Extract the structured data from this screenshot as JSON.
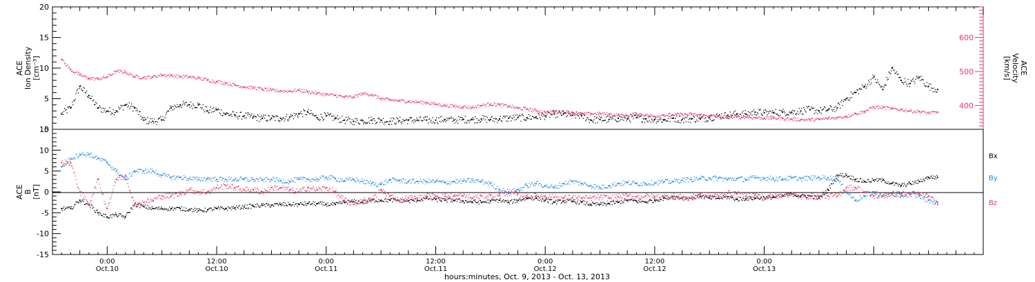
{
  "chart_data": [
    {
      "type": "scatter",
      "panel": "top",
      "ylabel_left": [
        "ACE",
        "Ion Density",
        "[cm⁻³]"
      ],
      "ylabel_right": [
        "ACE",
        "Velocity",
        "[km/s]"
      ],
      "left_ticks": [
        "20",
        "15",
        "10",
        "5",
        "0"
      ],
      "right_ticks": [
        "600",
        "500",
        "400"
      ],
      "ylim_left": [
        0,
        20
      ],
      "ylim_right": [
        330,
        690
      ],
      "grid": false,
      "series": [
        {
          "axis": "left",
          "color": "#000000",
          "x": [
            -5,
            -4,
            -3,
            -2,
            -1,
            0,
            1,
            2,
            3,
            4,
            5,
            6,
            7,
            8,
            9,
            10,
            11,
            12,
            13,
            14,
            15,
            16,
            17,
            18,
            19,
            20,
            21,
            22,
            23,
            24,
            25,
            26,
            27,
            28,
            29,
            30,
            31,
            32,
            33,
            34,
            35,
            36,
            37,
            38,
            39,
            40,
            41,
            42,
            43,
            44,
            45,
            46,
            47,
            48,
            49,
            50,
            51,
            52,
            53,
            54,
            55,
            56,
            57,
            58,
            59,
            60,
            61,
            62,
            63,
            64,
            65,
            66,
            67,
            68,
            69,
            70,
            71,
            72,
            73,
            74,
            75,
            76,
            77,
            78,
            79,
            80,
            81,
            82,
            83,
            84,
            85,
            86,
            87,
            88,
            89,
            90,
            91
          ],
          "values": [
            2.5,
            3.5,
            7,
            5.5,
            3.5,
            3,
            3,
            4,
            3.5,
            1.5,
            1.3,
            1.5,
            3.5,
            4,
            4,
            4,
            3,
            3.2,
            2.5,
            2.3,
            2.2,
            2,
            1.8,
            1.8,
            1.8,
            2,
            2.5,
            2.8,
            1.9,
            2.2,
            1.8,
            1.5,
            1.3,
            1.4,
            1.5,
            1.5,
            1.3,
            1.4,
            1.5,
            1.5,
            1.5,
            1.5,
            1.6,
            1.5,
            1.6,
            1.6,
            1.7,
            1.6,
            1.7,
            1.8,
            1.9,
            1.9,
            2,
            2.2,
            2.5,
            2.5,
            2.3,
            2.2,
            1.5,
            1.6,
            1.6,
            1.8,
            1.7,
            1.9,
            1.7,
            1.6,
            1.5,
            1.8,
            1.6,
            1.7,
            1.7,
            1.9,
            2.2,
            2.3,
            2.5,
            2.5,
            2.8,
            2.7,
            2.7,
            2.8,
            2.8,
            3,
            3.2,
            3,
            3.2,
            3.5,
            5,
            6,
            7,
            8.5,
            6.5,
            10,
            8,
            7.5,
            8.5,
            7,
            6.5
          ]
        },
        {
          "axis": "right",
          "color": "#e8386a",
          "x": [
            -5,
            -4,
            -3,
            -2,
            -1,
            0,
            1,
            2,
            3,
            4,
            5,
            6,
            7,
            8,
            9,
            10,
            11,
            12,
            13,
            14,
            15,
            16,
            17,
            18,
            19,
            20,
            21,
            22,
            23,
            24,
            25,
            26,
            27,
            28,
            29,
            30,
            31,
            32,
            33,
            34,
            35,
            36,
            37,
            38,
            39,
            40,
            41,
            42,
            43,
            44,
            45,
            46,
            47,
            48,
            49,
            50,
            51,
            52,
            53,
            54,
            55,
            56,
            57,
            58,
            59,
            60,
            61,
            62,
            63,
            64,
            65,
            66,
            67,
            68,
            69,
            70,
            71,
            72,
            73,
            74,
            75,
            76,
            77,
            78,
            79,
            80,
            81,
            82,
            83,
            84,
            85,
            86,
            87,
            88,
            89,
            90,
            91
          ],
          "values": [
            535,
            505,
            490,
            480,
            478,
            484,
            500,
            498,
            485,
            482,
            484,
            490,
            488,
            485,
            484,
            480,
            475,
            470,
            466,
            460,
            455,
            452,
            448,
            445,
            443,
            442,
            445,
            440,
            436,
            432,
            430,
            425,
            425,
            435,
            432,
            420,
            416,
            414,
            412,
            410,
            408,
            404,
            400,
            398,
            396,
            394,
            400,
            404,
            402,
            398,
            392,
            390,
            385,
            380,
            380,
            382,
            378,
            374,
            376,
            376,
            374,
            372,
            370,
            376,
            372,
            368,
            372,
            372,
            374,
            374,
            372,
            370,
            368,
            366,
            366,
            366,
            364,
            363,
            363,
            362,
            360,
            358,
            358,
            359,
            362,
            364,
            368,
            376,
            382,
            396,
            394,
            390,
            388,
            384,
            382,
            378,
            380
          ]
        }
      ]
    },
    {
      "type": "scatter",
      "panel": "bottom",
      "ylabel_left": [
        "ACE",
        "B",
        "[nT]"
      ],
      "left_ticks": [
        "15",
        "10",
        "5",
        "0",
        "-5",
        "-10",
        "-15"
      ],
      "ylim_left": [
        -15,
        15
      ],
      "grid": false,
      "zero_line": true,
      "legend": [
        "Bx",
        "By",
        "Bz"
      ],
      "legend_placement": "right",
      "series": [
        {
          "name": "Bx",
          "color": "#000000",
          "x": [
            -5,
            -4,
            -3,
            -2,
            -1,
            0,
            1,
            2,
            3,
            4,
            5,
            6,
            7,
            8,
            9,
            10,
            11,
            12,
            13,
            14,
            15,
            16,
            17,
            18,
            19,
            20,
            21,
            22,
            23,
            24,
            25,
            26,
            27,
            28,
            29,
            30,
            31,
            32,
            33,
            34,
            35,
            36,
            37,
            38,
            39,
            40,
            41,
            42,
            43,
            44,
            45,
            46,
            47,
            48,
            49,
            50,
            51,
            52,
            53,
            54,
            55,
            56,
            57,
            58,
            59,
            60,
            61,
            62,
            63,
            64,
            65,
            66,
            67,
            68,
            69,
            70,
            71,
            72,
            73,
            74,
            75,
            76,
            77,
            78,
            79,
            80,
            81,
            82,
            83,
            84,
            85,
            86,
            87,
            88,
            89,
            90,
            91
          ],
          "values": [
            -4,
            -4,
            -2,
            -3,
            -5,
            -6,
            -5.5,
            -6,
            -3,
            -3.5,
            -4,
            -4,
            -4,
            -4,
            -4.2,
            -4.5,
            -4.3,
            -4,
            -4,
            -3.8,
            -3.6,
            -3.4,
            -3.2,
            -3.2,
            -3,
            -3,
            -3,
            -2.8,
            -2.8,
            -3,
            -3,
            -2.5,
            -2.3,
            -2.5,
            -2,
            -2,
            -2,
            -2,
            -2.2,
            -2,
            -1.5,
            -1.8,
            -2,
            -2,
            -2.2,
            -2.4,
            -2.5,
            -2.2,
            -2,
            -2.5,
            -2,
            -1.5,
            -1.5,
            -2,
            -2.5,
            -2.2,
            -2.3,
            -2.5,
            -3,
            -3,
            -2.8,
            -2.5,
            -2,
            -2.2,
            -2.4,
            -2,
            -1.5,
            -1.2,
            -1.5,
            -1.5,
            -1,
            -1.5,
            -1.5,
            -1.2,
            -1.8,
            -1.6,
            -1.5,
            -1.4,
            -1.3,
            -1,
            -0.5,
            -1,
            -1,
            -1.5,
            0.5,
            4,
            4,
            3,
            2.5,
            2.8,
            2.8,
            2,
            1.5,
            2,
            2.5,
            3.5,
            3.5
          ]
        },
        {
          "name": "By",
          "color": "#1e88e5",
          "x": [
            -5,
            -4,
            -3,
            -2,
            -1,
            0,
            1,
            2,
            3,
            4,
            5,
            6,
            7,
            8,
            9,
            10,
            11,
            12,
            13,
            14,
            15,
            16,
            17,
            18,
            19,
            20,
            21,
            22,
            23,
            24,
            25,
            26,
            27,
            28,
            29,
            30,
            31,
            32,
            33,
            34,
            35,
            36,
            37,
            38,
            39,
            40,
            41,
            42,
            43,
            44,
            45,
            46,
            47,
            48,
            49,
            50,
            51,
            52,
            53,
            54,
            55,
            56,
            57,
            58,
            59,
            60,
            61,
            62,
            63,
            64,
            65,
            66,
            67,
            68,
            69,
            70,
            71,
            72,
            73,
            74,
            75,
            76,
            77,
            78,
            79,
            80,
            81,
            82,
            83,
            84,
            85,
            86,
            87,
            88,
            89,
            90,
            91
          ],
          "values": [
            6,
            8,
            9,
            9,
            8,
            7,
            5,
            3,
            5,
            5,
            5,
            4,
            3.5,
            3.5,
            3.2,
            3,
            3.2,
            3,
            3,
            3,
            3,
            3,
            2.8,
            3,
            2.7,
            2.5,
            3,
            3,
            3,
            3.5,
            3.2,
            2.7,
            3,
            2.5,
            2,
            1.8,
            2.8,
            2.8,
            2.5,
            2.5,
            2.5,
            2.5,
            2.2,
            2.5,
            2.6,
            2.7,
            2.5,
            2,
            0.5,
            0,
            0.5,
            1.5,
            2,
            1.5,
            1,
            2,
            2.5,
            2,
            1.5,
            1,
            1.5,
            2,
            2.2,
            2,
            2,
            2.2,
            2.4,
            2.5,
            2.8,
            3,
            3.2,
            3.3,
            3.3,
            3,
            3.2,
            3,
            3.4,
            3.3,
            3.2,
            3.1,
            3.3,
            3.2,
            3.3,
            3.4,
            3.4,
            3,
            0,
            -2,
            -1,
            0,
            -1,
            -0.5,
            -1,
            -0.5,
            -1,
            -2,
            -2.5
          ]
        },
        {
          "name": "Bz",
          "color": "#e8386a",
          "x": [
            -5,
            -4,
            -3,
            -2,
            -1,
            0,
            1,
            2,
            3,
            4,
            5,
            6,
            7,
            8,
            9,
            10,
            11,
            12,
            13,
            14,
            15,
            16,
            17,
            18,
            19,
            20,
            21,
            22,
            23,
            24,
            25,
            26,
            27,
            28,
            29,
            30,
            31,
            32,
            33,
            34,
            35,
            36,
            37,
            38,
            39,
            40,
            41,
            42,
            43,
            44,
            45,
            46,
            47,
            48,
            49,
            50,
            51,
            52,
            53,
            54,
            55,
            56,
            57,
            58,
            59,
            60,
            61,
            62,
            63,
            64,
            65,
            66,
            67,
            68,
            69,
            70,
            71,
            72,
            73,
            74,
            75,
            76,
            77,
            78,
            79,
            80,
            81,
            82,
            83,
            84,
            85,
            86,
            87,
            88,
            89,
            90,
            91
          ],
          "values": [
            7,
            7,
            0,
            -3,
            3,
            -4,
            3,
            4,
            -3,
            -2.5,
            -2,
            -1,
            -1,
            -0.5,
            0.5,
            0,
            0,
            1,
            1.5,
            1,
            0.5,
            0.5,
            0,
            1,
            1,
            0.5,
            0,
            1,
            0.5,
            1,
            0,
            -2,
            -3,
            -2,
            -2,
            0.5,
            -1,
            -2,
            -1.5,
            -1.5,
            -1,
            -1,
            -1,
            -1,
            -1,
            -1.5,
            -1,
            -0.8,
            -0.5,
            -0.3,
            -0.5,
            -1,
            -1,
            -1,
            -1.3,
            -1.5,
            -1.3,
            -1.5,
            -1.5,
            -1.3,
            -1.5,
            -1.2,
            -1,
            -1.2,
            -1,
            -1.2,
            -1.2,
            -1,
            -1.3,
            -1.5,
            -0.5,
            -1,
            -1,
            -0.3,
            -0.5,
            -1,
            -0.7,
            -1.5,
            -1,
            -0.8,
            -0.5,
            -1.3,
            -1,
            -1.2,
            -1,
            -1,
            1,
            1,
            0,
            -1,
            -1,
            -0.5,
            -0.5,
            -0.5,
            -0.5,
            -1,
            -3
          ]
        }
      ]
    }
  ],
  "x_axis": {
    "xlim": [
      -6,
      96
    ],
    "ticks": [
      {
        "x": 0,
        "time": "0:00",
        "date": "Oct.10"
      },
      {
        "x": 12,
        "time": "12:00",
        "date": "Oct.10"
      },
      {
        "x": 24,
        "time": "0:00",
        "date": "Oct.11"
      },
      {
        "x": 36,
        "time": "12:00",
        "date": "Oct.11"
      },
      {
        "x": 48,
        "time": "0:00",
        "date": "Oct.12"
      },
      {
        "x": 60,
        "time": "12:00",
        "date": "Oct.12"
      },
      {
        "x": 72,
        "time": "0:00",
        "date": "Oct.13"
      }
    ],
    "title": "hours:minutes, Oct.  9, 2013 - Oct. 13, 2013"
  }
}
